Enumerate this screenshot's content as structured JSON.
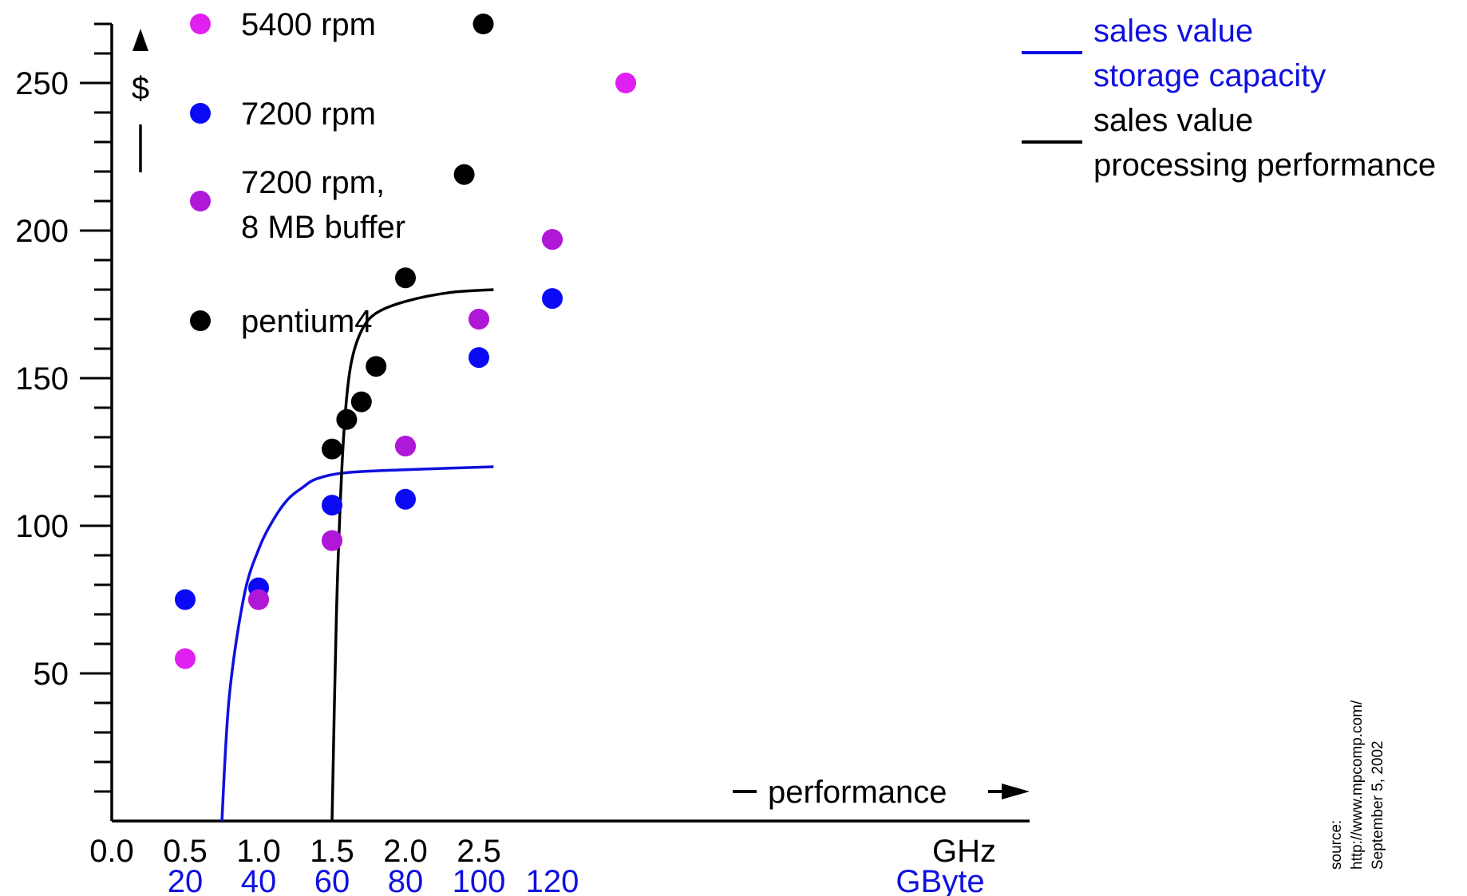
{
  "chart_data": {
    "type": "scatter",
    "y_axis": {
      "label": "$",
      "ticks": [
        50,
        100,
        150,
        200,
        250
      ],
      "range": [
        0,
        270
      ]
    },
    "x_axis": {
      "label": "performance",
      "ghz_ticks": [
        "0.0",
        "0.5",
        "1.0",
        "1.5",
        "2.0",
        "2.5"
      ],
      "ghz_unit": "GHz",
      "gbyte_ticks": [
        "20",
        "40",
        "60",
        "80",
        "100",
        "120"
      ],
      "gbyte_unit": "GByte",
      "range_ghz": [
        0,
        3.1
      ]
    },
    "series": [
      {
        "name": "5400 rpm",
        "color": "#e020f0",
        "unit": "GByte",
        "points": [
          [
            20,
            55
          ],
          [
            40,
            75
          ],
          [
            60,
            95
          ],
          [
            80,
            127
          ],
          [
            100,
            170
          ],
          [
            120,
            197
          ],
          [
            140,
            250
          ]
        ]
      },
      {
        "name": "7200 rpm",
        "color": "#0a0af5",
        "unit": "GByte",
        "points": [
          [
            20,
            75
          ],
          [
            40,
            79
          ],
          [
            60,
            107
          ],
          [
            80,
            109
          ],
          [
            100,
            157
          ],
          [
            120,
            177
          ]
        ]
      },
      {
        "name": "7200 rpm,\n8 MB buffer",
        "color": "#b018d8",
        "unit": "GByte",
        "points": [
          [
            40,
            75
          ],
          [
            60,
            95
          ],
          [
            80,
            127
          ],
          [
            100,
            170
          ],
          [
            120,
            197
          ]
        ]
      },
      {
        "name": "pentium4",
        "color": "#000000",
        "unit": "GHz",
        "points": [
          [
            1.5,
            126
          ],
          [
            1.6,
            136
          ],
          [
            1.7,
            142
          ],
          [
            1.8,
            154
          ],
          [
            2.0,
            184
          ],
          [
            2.4,
            219
          ],
          [
            2.53,
            270
          ]
        ]
      }
    ],
    "curves": [
      {
        "name": "sales value\nstorage capacity",
        "color": "#1010e0",
        "points": [
          [
            0.75,
            0
          ],
          [
            0.8,
            42
          ],
          [
            0.9,
            76
          ],
          [
            1.0,
            92
          ],
          [
            1.1,
            102
          ],
          [
            1.2,
            109
          ],
          [
            1.3,
            113
          ],
          [
            1.4,
            116
          ],
          [
            1.6,
            118
          ],
          [
            2.0,
            119
          ],
          [
            2.6,
            120
          ]
        ]
      },
      {
        "name": "sales value\nprocessing performance",
        "color": "#000000",
        "points": [
          [
            1.5,
            0
          ],
          [
            1.53,
            70
          ],
          [
            1.56,
            112
          ],
          [
            1.59,
            138
          ],
          [
            1.63,
            155
          ],
          [
            1.7,
            166
          ],
          [
            1.8,
            172
          ],
          [
            2.0,
            176
          ],
          [
            2.3,
            179
          ],
          [
            2.6,
            180
          ]
        ]
      }
    ],
    "source": "source:\nhttp://www.mpcomp.com/\nSeptember 5, 2002"
  }
}
